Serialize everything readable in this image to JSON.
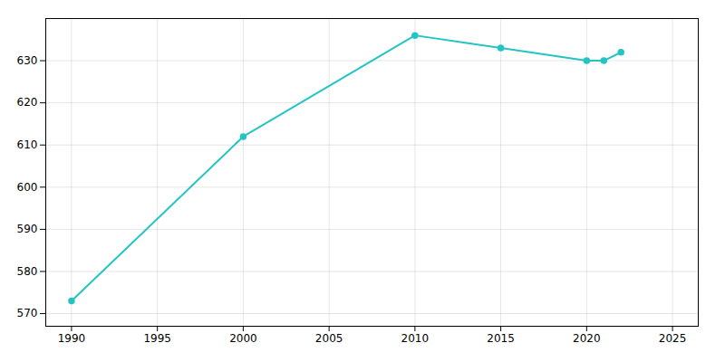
{
  "chart_data": {
    "type": "line",
    "x": [
      1990,
      2000,
      2010,
      2015,
      2020,
      2021,
      2022
    ],
    "values": [
      573,
      612,
      636,
      633,
      630,
      630,
      632
    ],
    "color": "#24c4c4",
    "marker": "circle",
    "xlim": [
      1988.5,
      2026.5
    ],
    "ylim": [
      567,
      640
    ],
    "xticks": [
      1990,
      1995,
      2000,
      2005,
      2010,
      2015,
      2020,
      2025
    ],
    "yticks": [
      570,
      580,
      590,
      600,
      610,
      620,
      630
    ],
    "grid": true
  }
}
